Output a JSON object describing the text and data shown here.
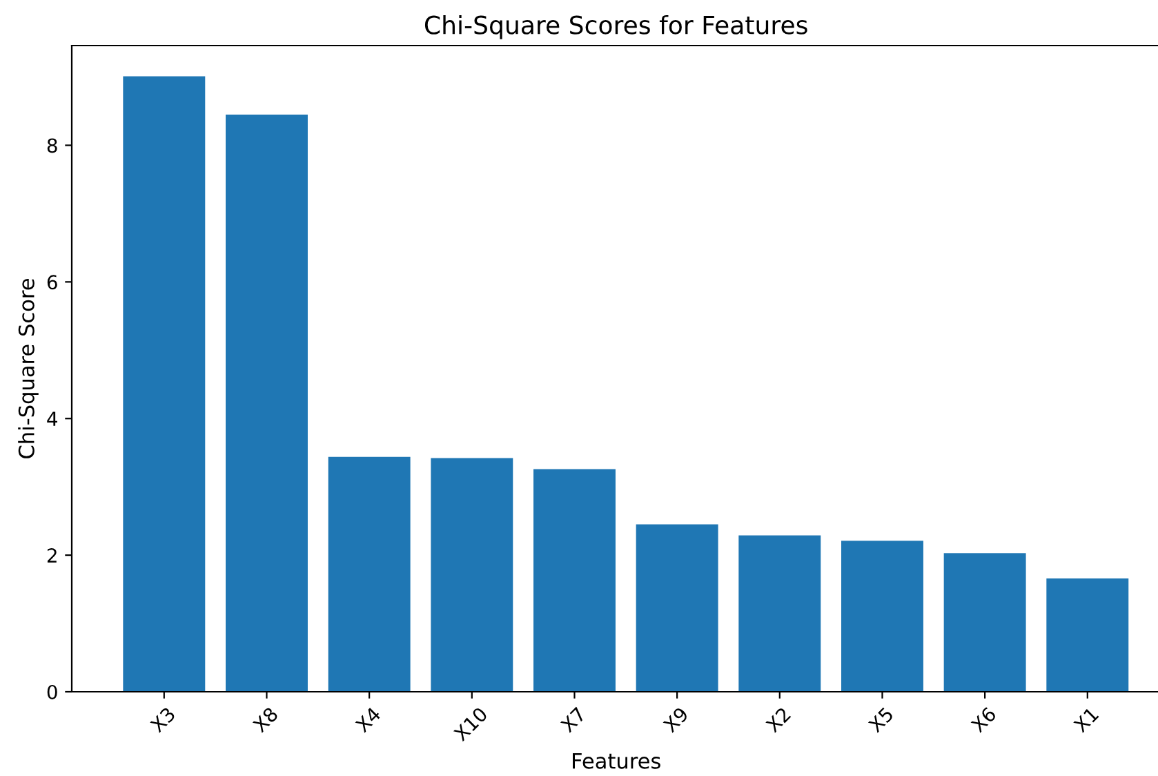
{
  "chart_data": {
    "type": "bar",
    "title": "Chi-Square Scores for Features",
    "xlabel": "Features",
    "ylabel": "Chi-Square Score",
    "categories": [
      "X3",
      "X8",
      "X4",
      "X10",
      "X7",
      "X9",
      "X2",
      "X5",
      "X6",
      "X1"
    ],
    "values": [
      9.01,
      8.45,
      3.44,
      3.42,
      3.26,
      2.45,
      2.29,
      2.21,
      2.03,
      1.66
    ],
    "color": "#1f77b4",
    "ylim": [
      0,
      9.46
    ],
    "yticks": [
      0,
      2,
      4,
      6,
      8
    ],
    "grid": false
  }
}
